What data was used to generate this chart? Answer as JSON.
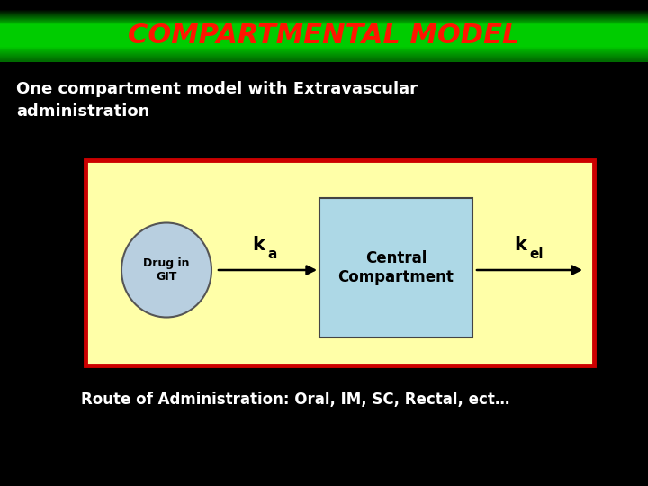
{
  "background_color": "#000000",
  "title_text": "COMPARTMENTAL MODEL",
  "title_text_color": "#ff1500",
  "title_bg_top": "#000000",
  "title_bg_mid": "#66cc00",
  "title_bg_bot": "#336600",
  "subtitle_text": "One compartment model with Extravascular\nadministration",
  "subtitle_color": "#ffffff",
  "diagram_bg_color": "#ffffa8",
  "diagram_border_color": "#cc0000",
  "ellipse_fc": "#b8cfe0",
  "ellipse_ec": "#555555",
  "ellipse_text": "Drug in\nGIT",
  "box_fc": "#add8e6",
  "box_ec": "#444444",
  "box_text": "Central\nCompartment",
  "ka_main": "k",
  "ka_sub": "a",
  "kel_main": "k",
  "kel_sub": "el",
  "footer_text": "Route of Administration: Oral, IM, SC, Rectal, ect…",
  "footer_color": "#ffffff",
  "arrow_color": "#000000"
}
